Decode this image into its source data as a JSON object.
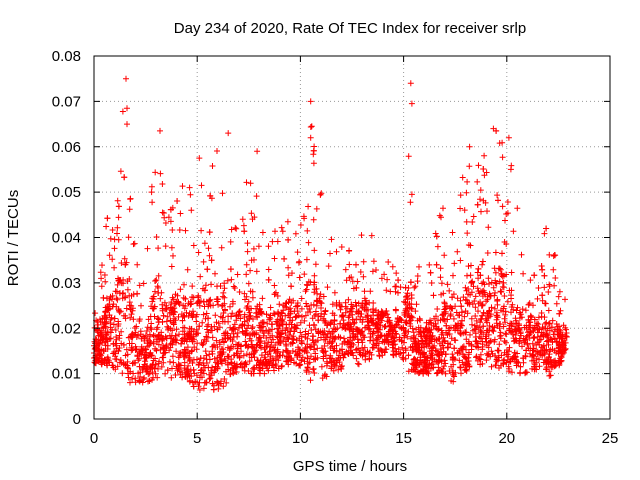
{
  "chart_data": {
    "type": "scatter",
    "title": "Day 234 of 2020, Rate Of TEC Index for receiver srlp",
    "xlabel": "GPS time / hours",
    "ylabel": "ROTI / TECUs",
    "xlim": [
      0,
      25
    ],
    "ylim": [
      0,
      0.08
    ],
    "x_ticks": [
      0,
      5,
      10,
      15,
      20,
      25
    ],
    "x_tick_labels": [
      "0",
      "5",
      "10",
      "15",
      "20",
      "25"
    ],
    "y_ticks": [
      0,
      0.01,
      0.02,
      0.03,
      0.04,
      0.05,
      0.06,
      0.07,
      0.08
    ],
    "y_tick_labels": [
      "0",
      "0.01",
      "0.02",
      "0.03",
      "0.04",
      "0.05",
      "0.06",
      "0.07",
      "0.08"
    ],
    "grid": true,
    "marker": "+",
    "color": "#ff0000",
    "x_range_of_data": [
      0,
      22.9
    ],
    "envelope": [
      [
        0.0,
        0.012,
        0.027
      ],
      [
        0.5,
        0.012,
        0.043
      ],
      [
        1.0,
        0.01,
        0.053
      ],
      [
        1.5,
        0.008,
        0.075
      ],
      [
        2.0,
        0.008,
        0.04
      ],
      [
        2.5,
        0.008,
        0.034
      ],
      [
        3.0,
        0.009,
        0.063
      ],
      [
        3.5,
        0.01,
        0.046
      ],
      [
        4.0,
        0.008,
        0.055
      ],
      [
        4.5,
        0.009,
        0.05
      ],
      [
        5.0,
        0.006,
        0.057
      ],
      [
        5.5,
        0.007,
        0.05
      ],
      [
        6.0,
        0.006,
        0.063
      ],
      [
        6.5,
        0.008,
        0.048
      ],
      [
        7.0,
        0.01,
        0.042
      ],
      [
        7.5,
        0.01,
        0.059
      ],
      [
        8.0,
        0.01,
        0.046
      ],
      [
        8.5,
        0.01,
        0.04
      ],
      [
        9.0,
        0.011,
        0.043
      ],
      [
        9.5,
        0.012,
        0.046
      ],
      [
        10.0,
        0.011,
        0.044
      ],
      [
        10.5,
        0.008,
        0.07
      ],
      [
        11.0,
        0.008,
        0.05
      ],
      [
        11.5,
        0.01,
        0.04
      ],
      [
        12.0,
        0.011,
        0.049
      ],
      [
        12.5,
        0.012,
        0.043
      ],
      [
        13.0,
        0.012,
        0.046
      ],
      [
        13.5,
        0.013,
        0.041
      ],
      [
        14.0,
        0.014,
        0.038
      ],
      [
        14.5,
        0.014,
        0.035
      ],
      [
        15.0,
        0.013,
        0.033
      ],
      [
        15.3,
        0.01,
        0.074
      ],
      [
        15.5,
        0.009,
        0.032
      ],
      [
        16.0,
        0.01,
        0.036
      ],
      [
        16.5,
        0.01,
        0.04
      ],
      [
        17.0,
        0.009,
        0.05
      ],
      [
        17.5,
        0.008,
        0.047
      ],
      [
        18.0,
        0.01,
        0.058
      ],
      [
        18.5,
        0.012,
        0.06
      ],
      [
        19.0,
        0.012,
        0.054
      ],
      [
        19.5,
        0.011,
        0.064
      ],
      [
        20.0,
        0.01,
        0.062
      ],
      [
        20.5,
        0.01,
        0.048
      ],
      [
        21.0,
        0.01,
        0.04
      ],
      [
        21.5,
        0.01,
        0.038
      ],
      [
        22.0,
        0.009,
        0.045
      ],
      [
        22.5,
        0.011,
        0.032
      ],
      [
        22.9,
        0.015,
        0.027
      ]
    ],
    "notable_points": [
      {
        "x": 1.55,
        "y": 0.075
      },
      {
        "x": 1.6,
        "y": 0.0685
      },
      {
        "x": 1.6,
        "y": 0.065
      },
      {
        "x": 3.2,
        "y": 0.0635
      },
      {
        "x": 5.1,
        "y": 0.0575
      },
      {
        "x": 6.5,
        "y": 0.063
      },
      {
        "x": 7.9,
        "y": 0.059
      },
      {
        "x": 10.5,
        "y": 0.07
      },
      {
        "x": 10.55,
        "y": 0.0645
      },
      {
        "x": 10.5,
        "y": 0.062
      },
      {
        "x": 15.35,
        "y": 0.074
      },
      {
        "x": 15.4,
        "y": 0.0695
      },
      {
        "x": 15.4,
        "y": 0.0495
      },
      {
        "x": 19.35,
        "y": 0.064
      },
      {
        "x": 20.1,
        "y": 0.062
      },
      {
        "x": 18.2,
        "y": 0.06
      },
      {
        "x": 18.9,
        "y": 0.058
      },
      {
        "x": 20.2,
        "y": 0.055
      }
    ],
    "generated_points_per_hour": 150
  }
}
